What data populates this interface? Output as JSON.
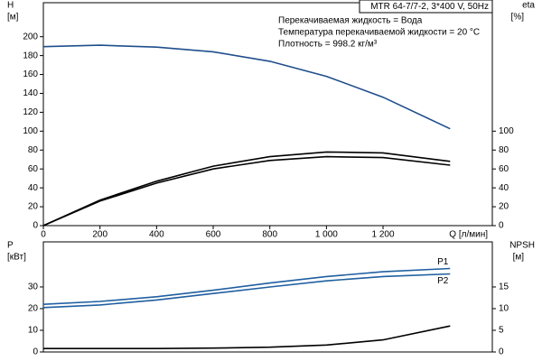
{
  "chart_data": [
    {
      "type": "line",
      "y_label": "H",
      "y_unit": "[м]",
      "y2_label": "eta",
      "y2_unit": "[%]",
      "x_label": "Q [л/мин]",
      "annotations": [
        "MTR 64-7/7-2, 3*400 V, 50Hz",
        "Перекачиваемая жидкость = Вода",
        "Температура перекачиваемой жидкости = 20 °C",
        "Плотность = 998.2 кг/м³"
      ],
      "x": [
        0,
        200,
        400,
        600,
        800,
        1000,
        1200,
        1437
      ],
      "xlim": [
        0,
        1586
      ],
      "xticks": [
        0,
        200,
        400,
        600,
        800,
        {
          "value": 1000,
          "label": "1 000"
        },
        {
          "value": 1200,
          "label": "1 200"
        }
      ],
      "ylim": [
        0,
        236
      ],
      "yticks": [
        0,
        20,
        40,
        60,
        80,
        100,
        120,
        140,
        160,
        180,
        200
      ],
      "y2lim": [
        0,
        236
      ],
      "y2ticks": [
        0,
        20,
        40,
        60,
        80,
        100
      ],
      "series": [
        {
          "color": "#1f4e8c",
          "values": [
            189.5,
            191,
            189,
            184,
            174,
            158,
            136,
            102.5
          ]
        },
        {
          "color": "#000000",
          "axis": "y2",
          "values": [
            0,
            27,
            47,
            63,
            73,
            78,
            77,
            68
          ]
        },
        {
          "color": "#000000",
          "axis": "y2",
          "values": [
            0,
            26,
            45,
            60,
            69,
            73,
            72,
            64
          ]
        }
      ]
    },
    {
      "type": "line",
      "y_label": "P",
      "y_unit": "[кВт]",
      "y2_label": "NPSH",
      "y2_unit": "[м]",
      "x": [
        0,
        200,
        400,
        600,
        800,
        1000,
        1200,
        1437
      ],
      "xlim": [
        0,
        1586
      ],
      "ylim": [
        0,
        50.8
      ],
      "yticks": [
        0,
        10,
        20,
        30
      ],
      "y2lim": [
        0,
        25.4
      ],
      "y2ticks": [
        0,
        5,
        10,
        15
      ],
      "series": [
        {
          "name": "P1",
          "color": "#1f5fa0",
          "values": [
            22,
            23.3,
            25.5,
            28.5,
            31.8,
            34.8,
            37,
            38.5
          ]
        },
        {
          "name": "P2",
          "color": "#1f5fa0",
          "values": [
            20.5,
            21.7,
            24,
            27,
            30,
            32.8,
            34.8,
            36
          ]
        },
        {
          "color": "#000000",
          "axis": "y2",
          "values": [
            0.8,
            0.8,
            0.8,
            0.9,
            1.1,
            1.6,
            2.8,
            6
          ]
        }
      ]
    }
  ]
}
